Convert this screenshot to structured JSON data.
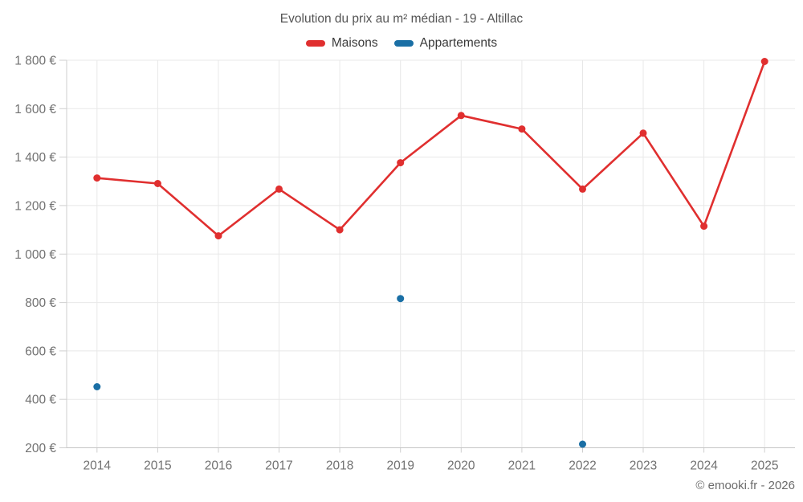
{
  "page": {
    "background": "#ffffff"
  },
  "chart_data": {
    "type": "line",
    "title": "Evolution du prix au m² médian - 19 - Altillac",
    "x": [
      2014,
      2015,
      2016,
      2017,
      2018,
      2019,
      2020,
      2021,
      2022,
      2023,
      2024,
      2025
    ],
    "series": [
      {
        "name": "Maisons",
        "type": "line",
        "color": "#e02f2f",
        "values": [
          1314,
          1291,
          1075,
          1268,
          1100,
          1377,
          1572,
          1516,
          1268,
          1499,
          1115,
          1795
        ]
      },
      {
        "name": "Appartements",
        "type": "scatter",
        "color": "#1a6fa5",
        "values": [
          452,
          null,
          null,
          null,
          null,
          816,
          null,
          null,
          215,
          null,
          null,
          null
        ]
      }
    ],
    "ylim": [
      200,
      1800
    ],
    "ytick_step": 200,
    "y_tick_suffix": " €",
    "grid": true,
    "legend_position": "top"
  },
  "footer": {
    "copyright": "© emooki.fr - 2026"
  }
}
